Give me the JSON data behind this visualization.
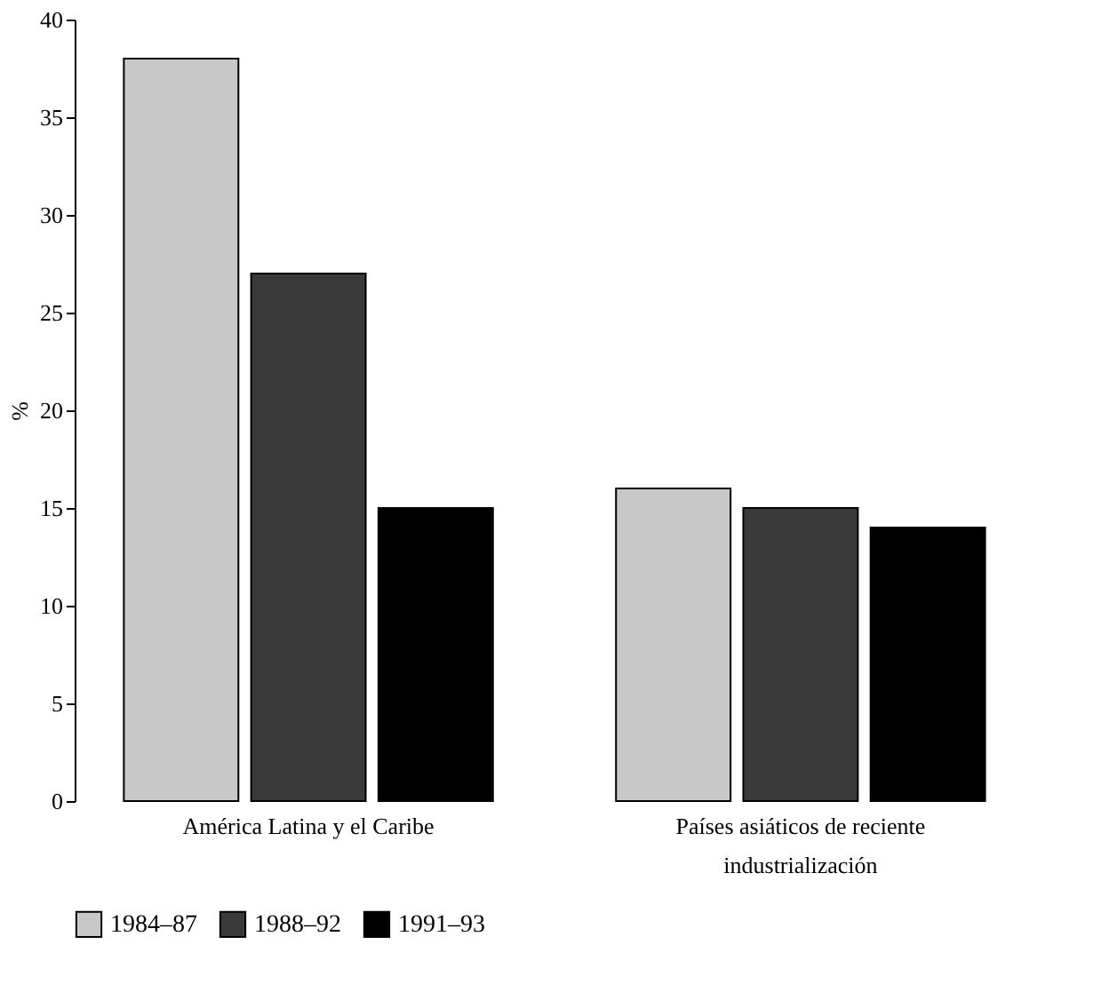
{
  "chart_data": {
    "type": "bar",
    "ylabel": "%",
    "categories": [
      "América Latina y el Caribe",
      "Países asiáticos de reciente industrialización"
    ],
    "series": [
      {
        "name": "1984–87",
        "color": "#c8c8c8",
        "values": [
          38,
          16
        ]
      },
      {
        "name": "1988–92",
        "color": "#3a3a3a",
        "values": [
          27,
          15
        ]
      },
      {
        "name": "1991–93",
        "color": "#000000",
        "values": [
          15,
          14
        ]
      }
    ],
    "ylim": [
      0,
      40
    ],
    "yticks": [
      0,
      5,
      10,
      15,
      20,
      25,
      30,
      35,
      40
    ],
    "grid": false,
    "legend": "bottom"
  }
}
